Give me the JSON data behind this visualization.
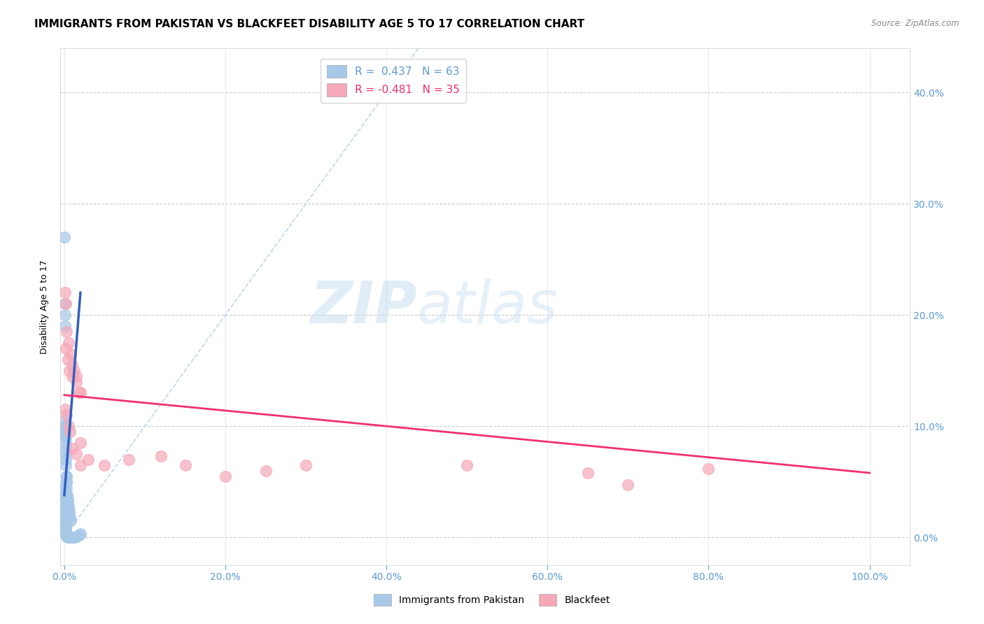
{
  "title": "IMMIGRANTS FROM PAKISTAN VS BLACKFEET DISABILITY AGE 5 TO 17 CORRELATION CHART",
  "source": "Source: ZipAtlas.com",
  "ylabel": "Disability Age 5 to 17",
  "xlim": [
    -0.005,
    1.05
  ],
  "ylim": [
    -0.025,
    0.44
  ],
  "blue_R": 0.437,
  "blue_N": 63,
  "pink_R": -0.481,
  "pink_N": 35,
  "blue_color": "#a8c8e8",
  "pink_color": "#f5a8b8",
  "blue_line_color": "#3060c0",
  "pink_line_color": "#f03070",
  "watermark_zip": "ZIP",
  "watermark_atlas": "atlas",
  "blue_scatter_x": [
    0.0005,
    0.0008,
    0.001,
    0.001,
    0.0012,
    0.0013,
    0.0015,
    0.0015,
    0.0015,
    0.002,
    0.002,
    0.002,
    0.002,
    0.0022,
    0.0025,
    0.0025,
    0.003,
    0.003,
    0.003,
    0.003,
    0.0035,
    0.004,
    0.004,
    0.0045,
    0.005,
    0.005,
    0.006,
    0.006,
    0.007,
    0.008,
    0.0003,
    0.0004,
    0.0005,
    0.0005,
    0.0006,
    0.0007,
    0.0008,
    0.0008,
    0.001,
    0.001,
    0.001,
    0.001,
    0.0012,
    0.0014,
    0.0015,
    0.0015,
    0.002,
    0.002,
    0.002,
    0.003,
    0.003,
    0.004,
    0.005,
    0.007,
    0.009,
    0.011,
    0.013,
    0.015,
    0.018,
    0.02,
    0.001,
    0.001,
    0.001
  ],
  "blue_scatter_y": [
    0.27,
    0.21,
    0.2,
    0.19,
    0.105,
    0.1,
    0.1,
    0.095,
    0.09,
    0.085,
    0.08,
    0.075,
    0.07,
    0.065,
    0.055,
    0.05,
    0.055,
    0.05,
    0.045,
    0.04,
    0.038,
    0.035,
    0.033,
    0.03,
    0.028,
    0.025,
    0.022,
    0.02,
    0.018,
    0.015,
    0.045,
    0.04,
    0.038,
    0.035,
    0.032,
    0.03,
    0.028,
    0.025,
    0.022,
    0.02,
    0.018,
    0.015,
    0.012,
    0.01,
    0.008,
    0.006,
    0.005,
    0.004,
    0.003,
    0.002,
    0.001,
    0.0,
    0.0,
    0.0,
    0.0,
    0.0,
    0.0,
    0.001,
    0.002,
    0.003,
    0.09,
    0.095,
    0.1
  ],
  "pink_scatter_x": [
    0.001,
    0.002,
    0.003,
    0.005,
    0.008,
    0.01,
    0.012,
    0.015,
    0.018,
    0.02,
    0.001,
    0.003,
    0.005,
    0.007,
    0.01,
    0.015,
    0.02,
    0.002,
    0.004,
    0.006,
    0.01,
    0.015,
    0.02,
    0.03,
    0.05,
    0.08,
    0.12,
    0.15,
    0.2,
    0.25,
    0.3,
    0.5,
    0.65,
    0.7,
    0.8
  ],
  "pink_scatter_y": [
    0.22,
    0.21,
    0.185,
    0.175,
    0.165,
    0.155,
    0.15,
    0.145,
    0.13,
    0.13,
    0.115,
    0.11,
    0.1,
    0.095,
    0.08,
    0.075,
    0.065,
    0.17,
    0.16,
    0.15,
    0.145,
    0.14,
    0.085,
    0.07,
    0.065,
    0.07,
    0.073,
    0.065,
    0.055,
    0.06,
    0.065,
    0.065,
    0.058,
    0.047,
    0.062
  ],
  "blue_trendline_x": [
    0.0,
    0.02
  ],
  "blue_trendline_y": [
    0.038,
    0.22
  ],
  "pink_trendline_x": [
    0.0,
    1.0
  ],
  "pink_trendline_y": [
    0.128,
    0.058
  ],
  "dashed_line_x": [
    0.0,
    0.44
  ],
  "dashed_line_y": [
    0.0,
    0.44
  ],
  "grid_color": "#cccccc",
  "axis_color": "#5b9bd5",
  "title_fontsize": 11,
  "label_fontsize": 9,
  "tick_fontsize": 10,
  "legend_fontsize": 11
}
